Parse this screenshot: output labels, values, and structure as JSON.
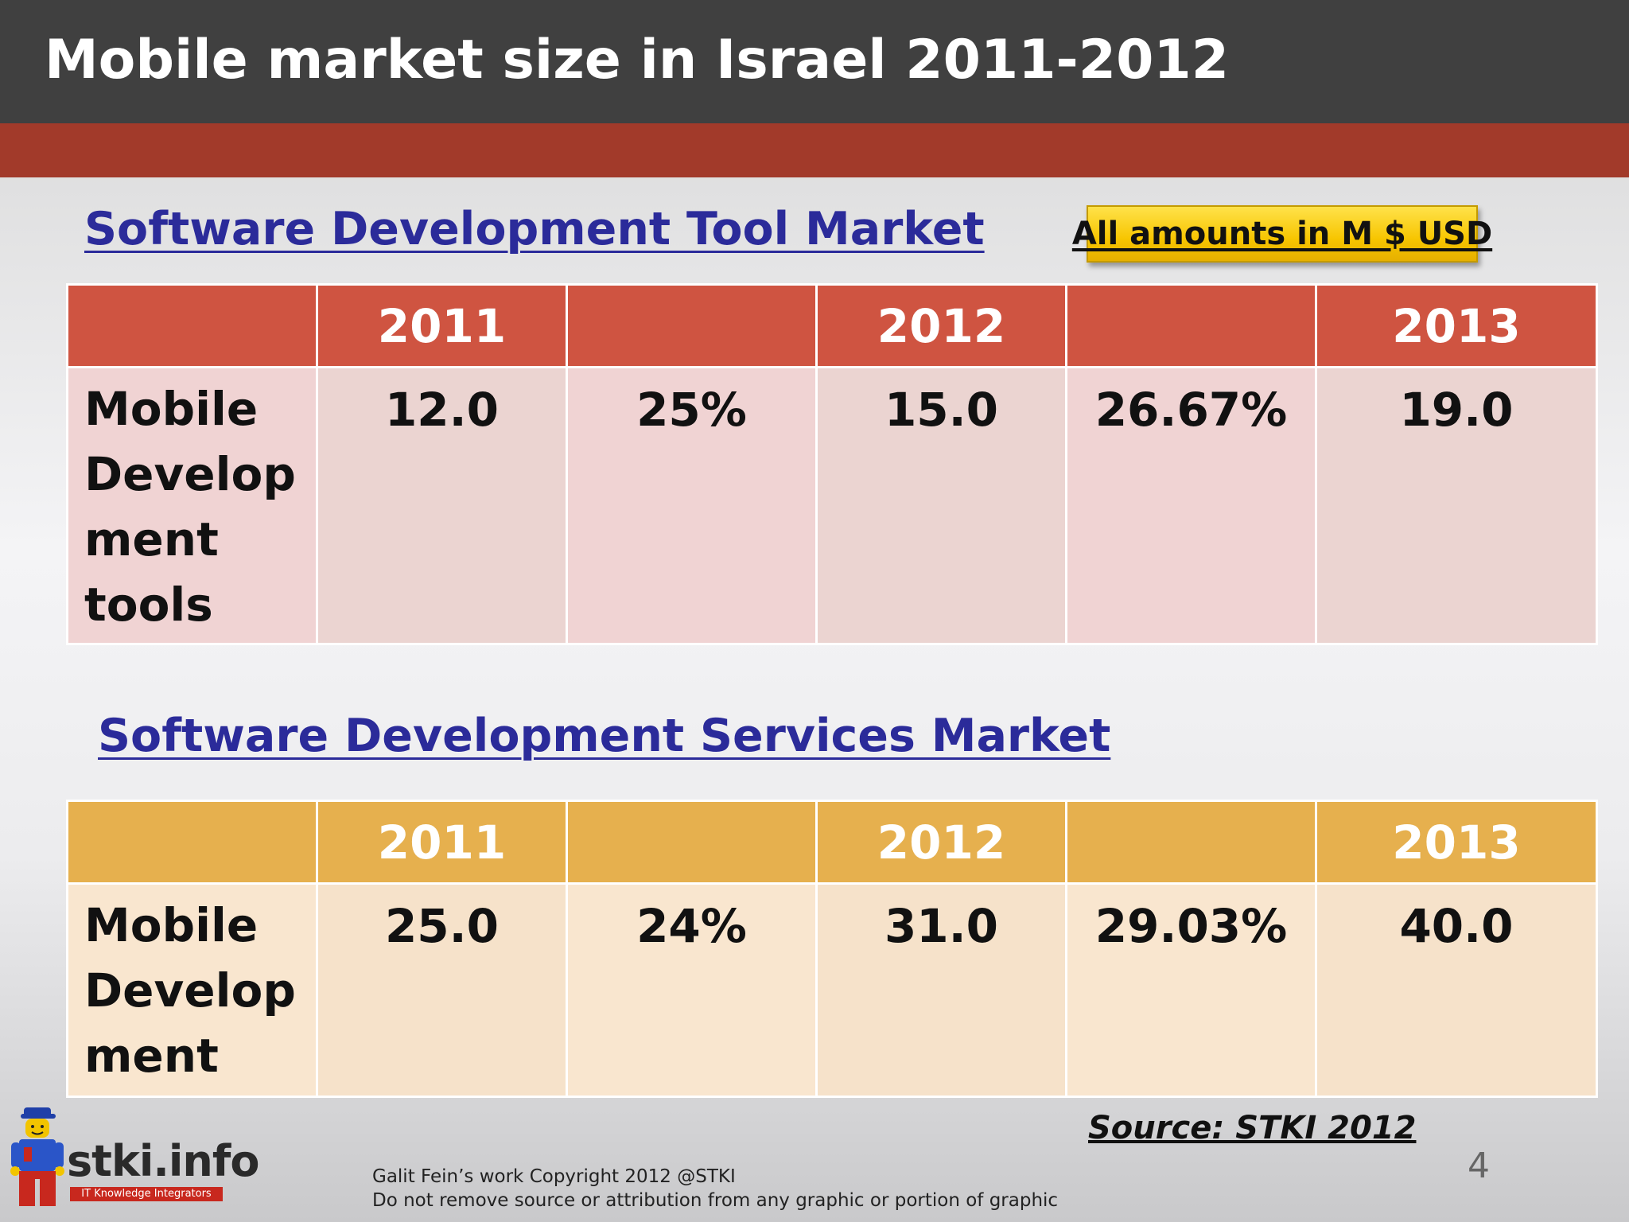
{
  "header": {
    "title": "Mobile market size in Israel 2011-2012"
  },
  "badge": {
    "label": "All amounts in M $ USD"
  },
  "tool_market": {
    "title": "Software Development Tool Market ",
    "headers": [
      "",
      "2011",
      "",
      "2012",
      "",
      "2013"
    ],
    "row": {
      "label_lines": [
        "Mobile",
        "Develop",
        "ment",
        "tools"
      ],
      "values": [
        "12.0",
        "25%",
        "15.0",
        "26.67%",
        "19.0"
      ]
    }
  },
  "services_market": {
    "title": "Software Development Services Market",
    "headers": [
      "",
      "2011",
      "",
      "2012",
      "",
      "2013"
    ],
    "row": {
      "label_lines": [
        "Mobile",
        "Develop",
        "ment"
      ],
      "values": [
        "25.0",
        "24%",
        "31.0",
        "29.03%",
        "40.0"
      ]
    }
  },
  "footer": {
    "source": "Source: STKI 2012",
    "page_number": "4",
    "copyright_line1": "Galit Fein’s work  Copyright  2012 @STKI",
    "copyright_line2": "Do not remove source or attribution from any graphic or portion of graphic",
    "logo_text": "stki.info",
    "logo_tagline": "IT Knowledge Integrators"
  },
  "colors": {
    "header_bg": "#404040",
    "band_red": "#a23a2a",
    "table1_header": "#cf5441",
    "table2_header": "#e6b04e",
    "title_blue": "#2b2b9a",
    "badge_yellow": "#f7c500"
  },
  "icons": {
    "logo_figure": "lego-figure-icon"
  }
}
